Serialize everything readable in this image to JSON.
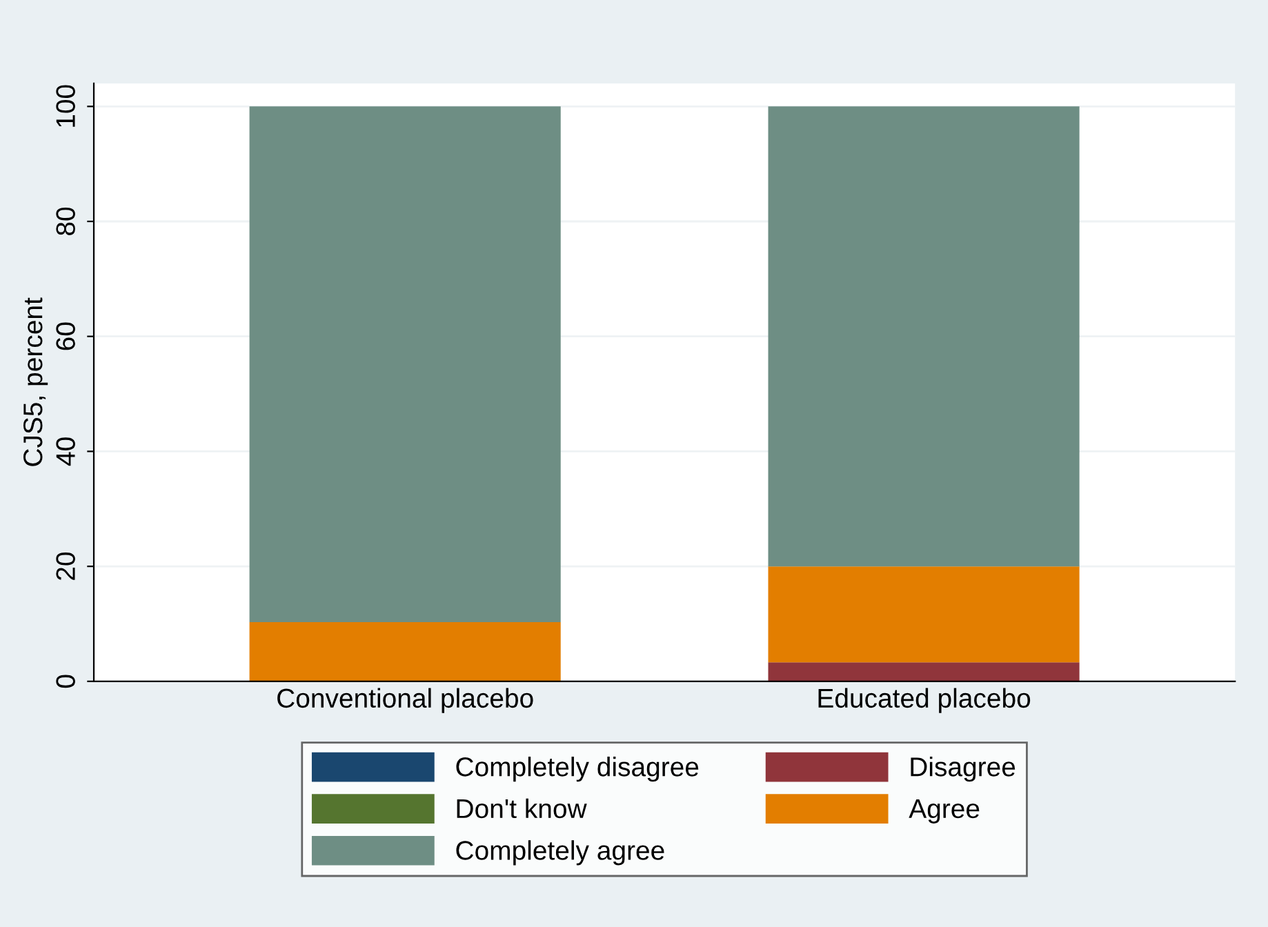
{
  "chart_data": {
    "type": "bar",
    "stacked": true,
    "ylabel": "CJS5, percent",
    "categories": [
      "Conventional placebo",
      "Educated placebo"
    ],
    "series": [
      {
        "name": "Completely disagree",
        "color": "#1a476f",
        "values": [
          0,
          0
        ]
      },
      {
        "name": "Disagree",
        "color": "#90353b",
        "values": [
          0,
          3.3
        ]
      },
      {
        "name": "Don't know",
        "color": "#55752f",
        "values": [
          0,
          0
        ]
      },
      {
        "name": "Agree",
        "color": "#e37e00",
        "values": [
          10.3,
          16.7
        ]
      },
      {
        "name": "Completely agree",
        "color": "#6e8e84",
        "values": [
          89.7,
          80
        ]
      }
    ],
    "ylim": [
      0,
      104
    ],
    "yticks": [
      0,
      20,
      40,
      60,
      80,
      100
    ],
    "grid": "y",
    "legend": "bottom"
  }
}
